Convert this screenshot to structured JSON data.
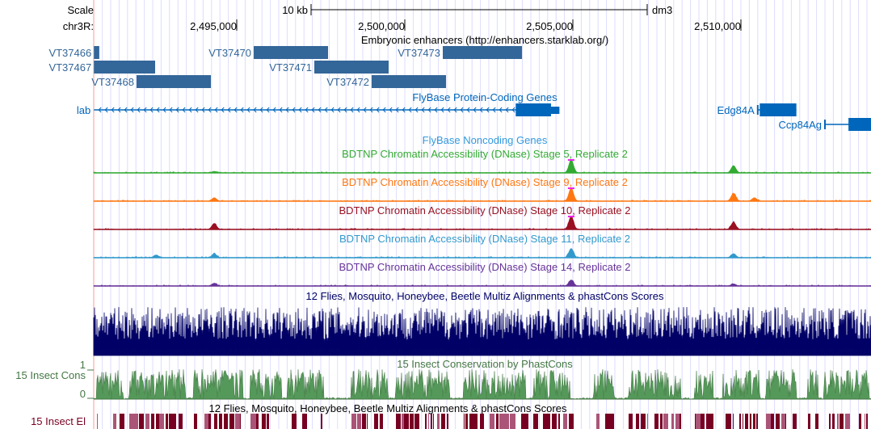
{
  "browser": {
    "scale_label": "Scale",
    "scale_bar_label": "10 kb",
    "assembly": "dm3",
    "chrom_label": "chr3R:",
    "view_start": 2490745,
    "view_end": 2513870,
    "ticks": [
      {
        "pos": 2495000,
        "label": "2,495,000"
      },
      {
        "pos": 2500000,
        "label": "2,500,000"
      },
      {
        "pos": 2505000,
        "label": "2,505,000"
      },
      {
        "pos": 2510000,
        "label": "2,510,000"
      }
    ],
    "scale_bar_kb": 10
  },
  "enhancers": {
    "title": "Embryonic enhancers (http://enhancers.starklab.org/)",
    "color": "#336699",
    "items": [
      {
        "name": "VT37466",
        "start": 2490750,
        "end": 2490910,
        "row": 0
      },
      {
        "name": "VT37467",
        "start": 2490750,
        "end": 2492572,
        "row": 1
      },
      {
        "name": "VT37468",
        "start": 2492019,
        "end": 2494231,
        "row": 2
      },
      {
        "name": "VT37470",
        "start": 2495505,
        "end": 2497716,
        "row": 0
      },
      {
        "name": "VT37471",
        "start": 2497308,
        "end": 2499519,
        "row": 1
      },
      {
        "name": "VT37472",
        "start": 2499014,
        "end": 2501226,
        "row": 2
      },
      {
        "name": "VT37473",
        "start": 2501130,
        "end": 2503486,
        "row": 0
      }
    ]
  },
  "genes": {
    "title": "FlyBase Protein-Coding Genes",
    "color": "#0066bb",
    "items": [
      {
        "name": "lab",
        "start": 2490750,
        "end": 2504600,
        "thick_start": 2503300,
        "thick_end": 2504350,
        "strand": "-",
        "row": 0
      },
      {
        "name": "Edg84A",
        "start": 2510500,
        "end": 2511650,
        "thick_start": 2510560,
        "thick_end": 2511650,
        "strand": "+",
        "row": 0
      },
      {
        "name": "Ccp84Ag",
        "start": 2512500,
        "end": 2513870,
        "thick_start": 2513200,
        "thick_end": 2513870,
        "strand": "+",
        "row": 1
      }
    ]
  },
  "noncoding": {
    "title": "FlyBase Noncoding Genes",
    "color": "#3399dd"
  },
  "dnase_tracks": [
    {
      "title": "BDTNP Chromatin Accessibility (DNase) Stage 5, Replicate 2",
      "color": "#33aa33",
      "peaks": [
        [
          2504950,
          1.0
        ],
        [
          2509780,
          0.55
        ],
        [
          2494330,
          0.1
        ]
      ]
    },
    {
      "title": "BDTNP Chromatin Accessibility (DNase) Stage 9, Replicate 2",
      "color": "#ff7711",
      "peaks": [
        [
          2504950,
          1.0
        ],
        [
          2509780,
          0.6
        ],
        [
          2494330,
          0.25
        ],
        [
          2510400,
          0.25
        ]
      ]
    },
    {
      "title": "BDTNP Chromatin Accessibility (DNase) Stage 10, Replicate 2",
      "color": "#991122",
      "peaks": [
        [
          2504950,
          1.0
        ],
        [
          2509780,
          0.55
        ],
        [
          2494330,
          0.45
        ]
      ]
    },
    {
      "title": "BDTNP Chromatin Accessibility (DNase) Stage 11, Replicate 2",
      "color": "#3399cc",
      "peaks": [
        [
          2504950,
          0.7
        ],
        [
          2509780,
          0.3
        ],
        [
          2494330,
          0.3
        ],
        [
          2492600,
          0.2
        ]
      ]
    },
    {
      "title": "BDTNP Chromatin Accessibility (DNase) Stage 14, Replicate 2",
      "color": "#663399",
      "peaks": [
        [
          2504950,
          0.45
        ],
        [
          2494330,
          0.2
        ],
        [
          2509780,
          0.15
        ]
      ]
    }
  ],
  "multiz": {
    "title": "12 Flies, Mosquito, Honeybee, Beetle Multiz Alignments & phastCons Scores",
    "color": "#000066"
  },
  "phastcons": {
    "title": "15 Insect Conservation by PhastCons",
    "label": "15 Insect Cons",
    "ymax_label": "1",
    "ymin_label": "0",
    "color": "#447744",
    "ylim": [
      0,
      1
    ]
  },
  "elements": {
    "title": "12 Flies, Mosquito, Honeybee, Beetle Multiz Alignments & phastCons Scores",
    "label": "15 Insect El",
    "color": "#770022"
  }
}
